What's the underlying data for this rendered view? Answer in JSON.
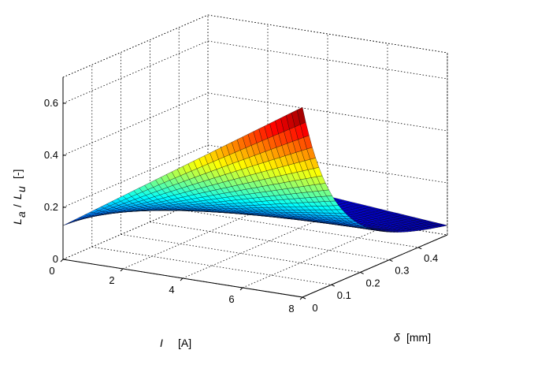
{
  "chart_data": {
    "type": "surface",
    "title": "",
    "xlabel": {
      "symbol": "I",
      "unit": "[A]"
    },
    "ylabel": {
      "symbol": "δ",
      "unit": "[mm]"
    },
    "zlabel": {
      "symbol_main": "L",
      "sub1": "a",
      "sep": "/",
      "symbol_main2": "L",
      "sub2": "u",
      "unit": "[-]"
    },
    "x_range": [
      0,
      8
    ],
    "y_range": [
      0,
      0.5
    ],
    "z_range": [
      0,
      0.7
    ],
    "x_ticks": [
      "0",
      "2",
      "4",
      "6",
      "8"
    ],
    "y_ticks": [
      "0",
      "0.1",
      "0.2",
      "0.3",
      "0.4"
    ],
    "z_ticks": [
      "0",
      "0.2",
      "0.4",
      "0.6"
    ],
    "colormap": "jet",
    "grid": true,
    "surface_samples": {
      "note_x": [
        0,
        2,
        4,
        6,
        8
      ],
      "note_y": [
        0,
        0.1,
        0.2,
        0.3,
        0.4,
        0.5
      ],
      "z_at_y0": [
        0.13,
        0.3,
        0.46,
        0.62,
        0.72
      ],
      "z_at_y05": [
        0.12,
        0.085,
        0.06,
        0.04,
        0.03
      ],
      "z_at_x0": [
        0.13,
        0.13,
        0.13,
        0.13,
        0.12,
        0.12
      ]
    }
  }
}
